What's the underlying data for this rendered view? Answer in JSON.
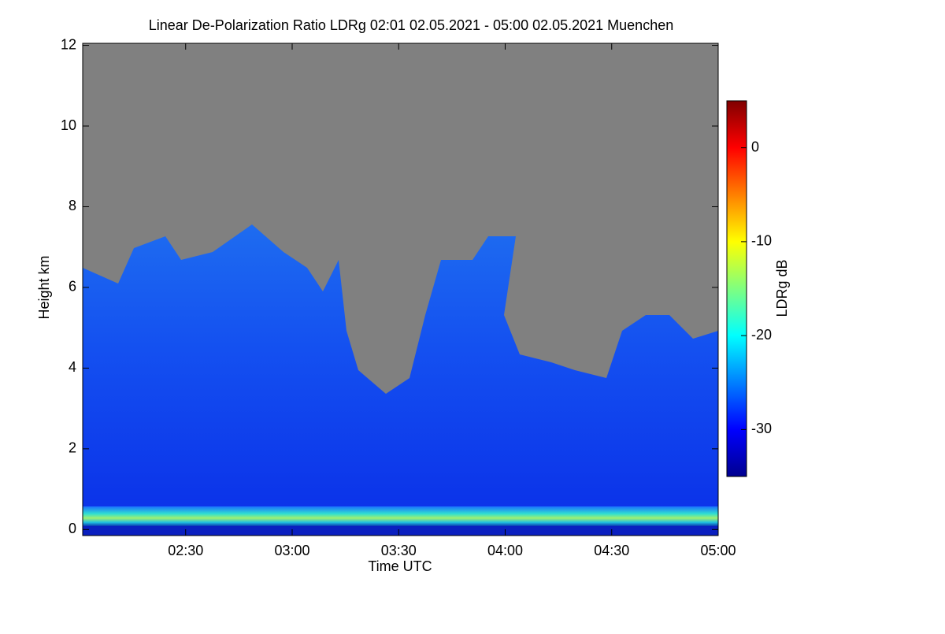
{
  "chart_data": {
    "type": "heatmap",
    "title": "Linear De-Polarization Ratio LDRg   02:01 02.05.2021 - 05:00 02.05.2021 Muenchen",
    "xlabel": "Time UTC",
    "ylabel": "Height km",
    "xlim": [
      2.0167,
      5.0
    ],
    "xticks": [
      {
        "value": 2.5,
        "label": "02:30"
      },
      {
        "value": 3.0,
        "label": "03:00"
      },
      {
        "value": 3.5,
        "label": "03:30"
      },
      {
        "value": 4.0,
        "label": "04:00"
      },
      {
        "value": 4.5,
        "label": "04:30"
      },
      {
        "value": 5.0,
        "label": "05:00"
      }
    ],
    "ylim": [
      -0.15,
      12.05
    ],
    "yticks": [
      0,
      2,
      4,
      6,
      8,
      10,
      12
    ],
    "colorbar": {
      "label": "LDRg dB",
      "lim": [
        -35,
        5
      ],
      "ticks": [
        0,
        -10,
        -20,
        -30
      ],
      "colormap": "jet"
    }
  }
}
